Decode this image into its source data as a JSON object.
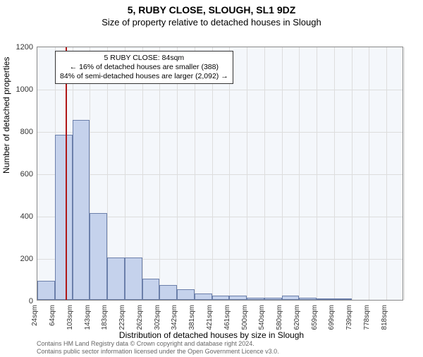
{
  "title": "5, RUBY CLOSE, SLOUGH, SL1 9DZ",
  "subtitle": "Size of property relative to detached houses in Slough",
  "y_label": "Number of detached properties",
  "x_label": "Distribution of detached houses by size in Slough",
  "chart": {
    "type": "histogram",
    "background_color": "#f4f7fb",
    "border_color": "#888888",
    "grid_color": "#dddddd",
    "bar_fill": "#c5d2ec",
    "bar_border": "#6b7faa",
    "marker_color": "#b01717",
    "ylim": [
      0,
      1200
    ],
    "ytick_step": 200,
    "x_categories": [
      "24sqm",
      "64sqm",
      "103sqm",
      "143sqm",
      "183sqm",
      "223sqm",
      "262sqm",
      "302sqm",
      "342sqm",
      "381sqm",
      "421sqm",
      "461sqm",
      "500sqm",
      "540sqm",
      "580sqm",
      "620sqm",
      "659sqm",
      "699sqm",
      "739sqm",
      "778sqm",
      "818sqm"
    ],
    "values": [
      90,
      780,
      850,
      410,
      200,
      200,
      100,
      70,
      50,
      30,
      20,
      20,
      10,
      10,
      20,
      10,
      5,
      5,
      0,
      0,
      0
    ],
    "marker_index": 1.6,
    "bar_width_ratio": 1.0
  },
  "annotation": {
    "line1": "5 RUBY CLOSE: 84sqm",
    "line2": "← 16% of detached houses are smaller (388)",
    "line3": "84% of semi-detached houses are larger (2,092) →"
  },
  "footer": {
    "line1": "Contains HM Land Registry data © Crown copyright and database right 2024.",
    "line2": "Contains public sector information licensed under the Open Government Licence v3.0."
  },
  "fonts": {
    "title_size": 14,
    "subtitle_size": 13,
    "label_size": 12,
    "tick_size": 11,
    "annotation_size": 10.5,
    "footer_size": 9
  }
}
